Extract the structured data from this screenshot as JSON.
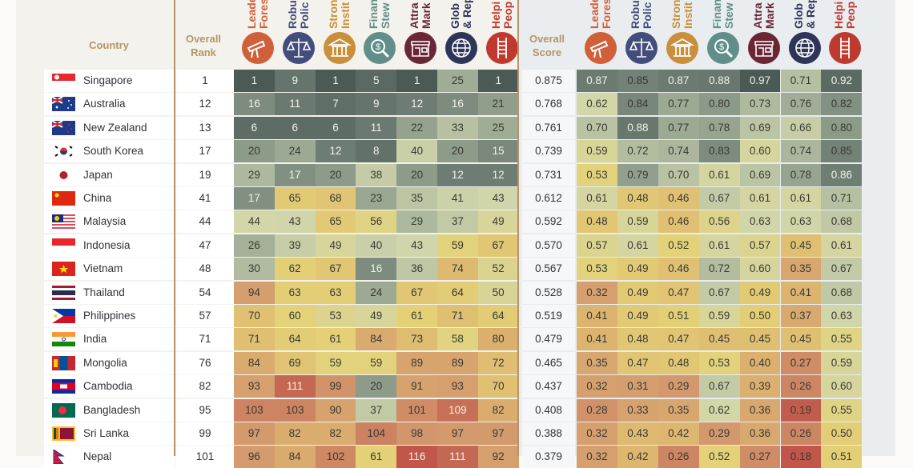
{
  "header": {
    "country": "Country",
    "overall_rank": [
      "Overall",
      "Rank"
    ],
    "overall_score": [
      "Overall",
      "Score"
    ]
  },
  "categories": [
    {
      "lines": [
        "Leade",
        "Fores"
      ],
      "icon": "telescope-icon",
      "color": "#d0603a"
    },
    {
      "lines": [
        "Robu",
        "Polic"
      ],
      "icon": "scales-icon",
      "color": "#434d7c"
    },
    {
      "lines": [
        "Stron",
        "Instit"
      ],
      "icon": "institution-building-icon",
      "color": "#c98f3a"
    },
    {
      "lines": [
        "Finan",
        "Stew"
      ],
      "icon": "dollar-magnifier-icon",
      "color": "#5f8f88"
    },
    {
      "lines": [
        "Attra",
        "Mark"
      ],
      "icon": "storefront-icon",
      "color": "#6b2636"
    },
    {
      "lines": [
        "Glob",
        "& Rep"
      ],
      "icon": "globe-icon",
      "color": "#2e3558"
    },
    {
      "lines": [
        "Helpi",
        "Peop"
      ],
      "icon": "ladder-icon",
      "color": "#c0392f"
    }
  ],
  "chart_data": {
    "type": "heatmap",
    "columns_rank": [
      "Overall Rank",
      "Leade/Fores",
      "Robu/Polic",
      "Stron/Instit",
      "Finan/Stew",
      "Attra/Mark",
      "Glob/& Rep",
      "Helpi/Peop"
    ],
    "colorscale": {
      "best": "#4b5a55",
      "mid_good": "#a9b59c",
      "neutral": "#d6d9ab",
      "mid": "#e4d277",
      "mid_bad": "#d9a26f",
      "worst": "#c0574a"
    },
    "rows": [
      {
        "country": "Singapore",
        "flag": "singapore-flag",
        "rank": 1,
        "ranks": [
          1,
          9,
          1,
          5,
          1,
          25,
          1
        ],
        "score": "0.875",
        "scores": [
          "0.87",
          "0.85",
          "0.87",
          "0.88",
          "0.97",
          "0.71",
          "0.92"
        ]
      },
      {
        "country": "Australia",
        "flag": "australia-flag",
        "rank": 12,
        "ranks": [
          16,
          11,
          7,
          9,
          12,
          16,
          21
        ],
        "score": "0.768",
        "scores": [
          "0.62",
          "0.84",
          "0.77",
          "0.80",
          "0.73",
          "0.76",
          "0.82"
        ]
      },
      {
        "country": "New Zealand",
        "flag": "new-zealand-flag",
        "rank": 13,
        "ranks": [
          6,
          6,
          6,
          11,
          22,
          33,
          25
        ],
        "score": "0.761",
        "scores": [
          "0.70",
          "0.88",
          "0.77",
          "0.78",
          "0.69",
          "0.66",
          "0.80"
        ]
      },
      {
        "country": "South Korea",
        "flag": "south-korea-flag",
        "rank": 17,
        "ranks": [
          20,
          24,
          12,
          8,
          40,
          20,
          15
        ],
        "score": "0.739",
        "scores": [
          "0.59",
          "0.72",
          "0.74",
          "0.83",
          "0.60",
          "0.74",
          "0.85"
        ]
      },
      {
        "country": "Japan",
        "flag": "japan-flag",
        "rank": 19,
        "ranks": [
          29,
          17,
          20,
          38,
          20,
          12,
          12
        ],
        "score": "0.731",
        "scores": [
          "0.53",
          "0.79",
          "0.70",
          "0.61",
          "0.69",
          "0.78",
          "0.86"
        ]
      },
      {
        "country": "China",
        "flag": "china-flag",
        "rank": 41,
        "ranks": [
          17,
          65,
          68,
          23,
          35,
          41,
          43
        ],
        "score": "0.612",
        "scores": [
          "0.61",
          "0.48",
          "0.46",
          "0.67",
          "0.61",
          "0.61",
          "0.71"
        ]
      },
      {
        "country": "Malaysia",
        "flag": "malaysia-flag",
        "rank": 44,
        "ranks": [
          44,
          43,
          65,
          56,
          29,
          37,
          49
        ],
        "score": "0.592",
        "scores": [
          "0.48",
          "0.59",
          "0.46",
          "0.56",
          "0.63",
          "0.63",
          "0.68"
        ]
      },
      {
        "country": "Indonesia",
        "flag": "indonesia-flag",
        "rank": 47,
        "ranks": [
          26,
          39,
          49,
          40,
          43,
          59,
          67
        ],
        "score": "0.570",
        "scores": [
          "0.57",
          "0.61",
          "0.52",
          "0.61",
          "0.57",
          "0.45",
          "0.61"
        ]
      },
      {
        "country": "Vietnam",
        "flag": "vietnam-flag",
        "rank": 48,
        "ranks": [
          30,
          62,
          67,
          16,
          36,
          74,
          52
        ],
        "score": "0.567",
        "scores": [
          "0.53",
          "0.49",
          "0.46",
          "0.72",
          "0.60",
          "0.35",
          "0.67"
        ]
      },
      {
        "country": "Thailand",
        "flag": "thailand-flag",
        "rank": 54,
        "ranks": [
          94,
          63,
          63,
          24,
          67,
          64,
          50
        ],
        "score": "0.528",
        "scores": [
          "0.32",
          "0.49",
          "0.47",
          "0.67",
          "0.49",
          "0.41",
          "0.68"
        ]
      },
      {
        "country": "Philippines",
        "flag": "philippines-flag",
        "rank": 57,
        "ranks": [
          70,
          60,
          53,
          49,
          61,
          71,
          64
        ],
        "score": "0.519",
        "scores": [
          "0.41",
          "0.49",
          "0.51",
          "0.59",
          "0.50",
          "0.37",
          "0.63"
        ]
      },
      {
        "country": "India",
        "flag": "india-flag",
        "rank": 71,
        "ranks": [
          71,
          64,
          61,
          84,
          73,
          58,
          80
        ],
        "score": "0.479",
        "scores": [
          "0.41",
          "0.48",
          "0.47",
          "0.45",
          "0.45",
          "0.45",
          "0.55"
        ]
      },
      {
        "country": "Mongolia",
        "flag": "mongolia-flag",
        "rank": 76,
        "ranks": [
          84,
          69,
          59,
          59,
          89,
          89,
          72
        ],
        "score": "0.465",
        "scores": [
          "0.35",
          "0.47",
          "0.48",
          "0.53",
          "0.40",
          "0.27",
          "0.59"
        ]
      },
      {
        "country": "Cambodia",
        "flag": "cambodia-flag",
        "rank": 82,
        "ranks": [
          93,
          111,
          99,
          20,
          91,
          93,
          70
        ],
        "score": "0.437",
        "scores": [
          "0.32",
          "0.31",
          "0.29",
          "0.67",
          "0.39",
          "0.26",
          "0.60"
        ]
      },
      {
        "country": "Bangladesh",
        "flag": "bangladesh-flag",
        "rank": 95,
        "ranks": [
          103,
          103,
          90,
          37,
          101,
          109,
          82
        ],
        "score": "0.408",
        "scores": [
          "0.28",
          "0.33",
          "0.35",
          "0.62",
          "0.36",
          "0.19",
          "0.55"
        ]
      },
      {
        "country": "Sri Lanka",
        "flag": "sri-lanka-flag",
        "rank": 99,
        "ranks": [
          97,
          82,
          82,
          104,
          98,
          97,
          97
        ],
        "score": "0.388",
        "scores": [
          "0.32",
          "0.43",
          "0.42",
          "0.29",
          "0.36",
          "0.26",
          "0.50"
        ]
      },
      {
        "country": "Nepal",
        "flag": "nepal-flag",
        "rank": 101,
        "ranks": [
          96,
          84,
          102,
          61,
          116,
          111,
          92
        ],
        "score": "0.379",
        "scores": [
          "0.32",
          "0.42",
          "0.26",
          "0.52",
          "0.27",
          "0.18",
          "0.51"
        ]
      }
    ]
  }
}
